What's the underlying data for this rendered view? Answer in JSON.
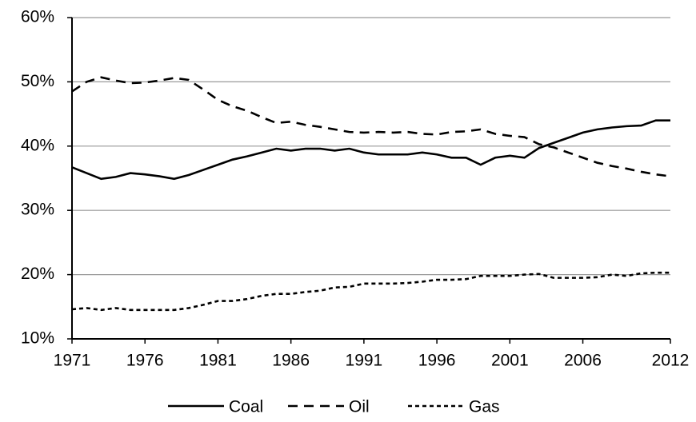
{
  "chart_data": {
    "type": "line",
    "x": [
      1971,
      1972,
      1973,
      1974,
      1975,
      1976,
      1977,
      1978,
      1979,
      1980,
      1981,
      1982,
      1983,
      1984,
      1985,
      1986,
      1987,
      1988,
      1989,
      1990,
      1991,
      1992,
      1993,
      1994,
      1995,
      1996,
      1997,
      1998,
      1999,
      2000,
      2001,
      2002,
      2003,
      2004,
      2005,
      2006,
      2007,
      2008,
      2009,
      2010,
      2011,
      2012
    ],
    "series": [
      {
        "name": "Coal",
        "color": "#000000",
        "dash": "solid",
        "values": [
          36.7,
          35.8,
          34.9,
          35.2,
          35.8,
          35.6,
          35.3,
          34.9,
          35.5,
          36.3,
          37.1,
          37.9,
          38.4,
          39.0,
          39.6,
          39.3,
          39.6,
          39.6,
          39.3,
          39.6,
          39.0,
          38.7,
          38.7,
          38.7,
          39.0,
          38.7,
          38.2,
          38.2,
          37.1,
          38.2,
          38.5,
          38.2,
          39.7,
          40.5,
          41.3,
          42.1,
          42.6,
          42.9,
          43.1,
          43.2,
          44.0,
          44.0
        ]
      },
      {
        "name": "Oil",
        "color": "#000000",
        "dash": "dashed",
        "values": [
          48.5,
          50.0,
          50.7,
          50.2,
          49.8,
          49.9,
          50.2,
          50.6,
          50.3,
          48.8,
          47.2,
          46.2,
          45.5,
          44.5,
          43.6,
          43.8,
          43.3,
          43.0,
          42.6,
          42.2,
          42.1,
          42.2,
          42.1,
          42.2,
          41.9,
          41.8,
          42.2,
          42.3,
          42.6,
          41.9,
          41.6,
          41.4,
          40.3,
          39.8,
          39.0,
          38.2,
          37.4,
          36.9,
          36.5,
          36.0,
          35.6,
          35.3
        ]
      },
      {
        "name": "Gas",
        "color": "#000000",
        "dash": "dotted",
        "values": [
          14.6,
          14.8,
          14.5,
          14.8,
          14.5,
          14.5,
          14.5,
          14.5,
          14.8,
          15.3,
          15.9,
          15.9,
          16.2,
          16.7,
          17.0,
          17.0,
          17.3,
          17.5,
          18.0,
          18.1,
          18.6,
          18.6,
          18.6,
          18.7,
          18.9,
          19.2,
          19.2,
          19.3,
          19.8,
          19.8,
          19.8,
          20.0,
          20.1,
          19.5,
          19.5,
          19.5,
          19.6,
          20.0,
          19.8,
          20.2,
          20.3,
          20.3
        ]
      }
    ],
    "xlim": [
      1971,
      2012
    ],
    "xticks": [
      1971,
      1976,
      1981,
      1986,
      1991,
      1996,
      2001,
      2006,
      2012
    ],
    "ylim": [
      10,
      60
    ],
    "yticks": [
      {
        "value": 10,
        "label": "10%"
      },
      {
        "value": 20,
        "label": "20%"
      },
      {
        "value": 30,
        "label": "30%"
      },
      {
        "value": 40,
        "label": "40%"
      },
      {
        "value": 50,
        "label": "50%"
      },
      {
        "value": 60,
        "label": "60%"
      }
    ],
    "grid": true,
    "legend": "bottom"
  }
}
